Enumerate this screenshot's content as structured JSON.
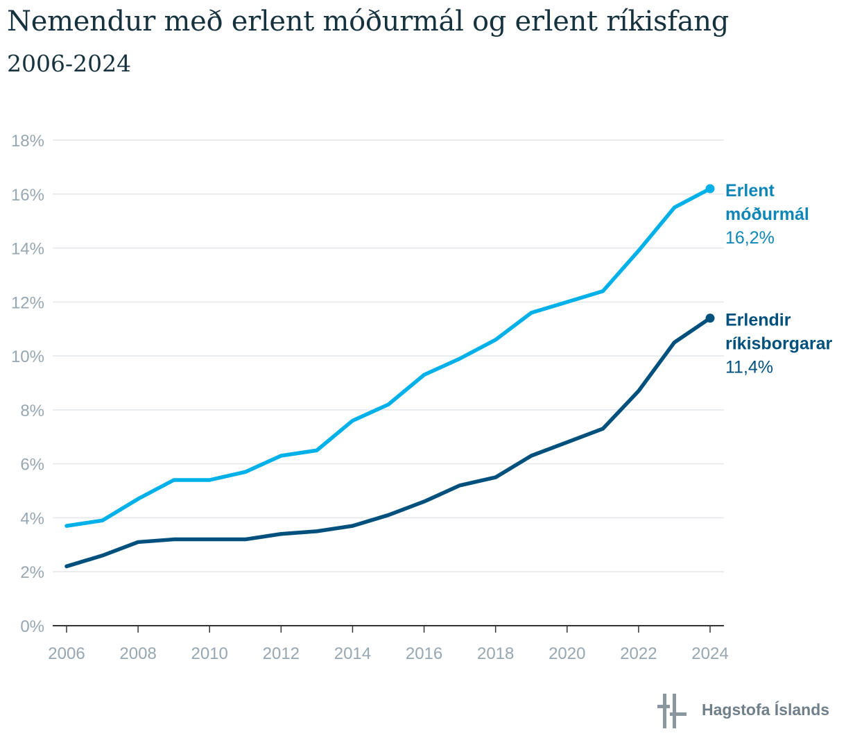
{
  "title": "Nemendur með erlent móðurmál og erlent ríkisfang",
  "subtitle": "2006-2024",
  "brand": {
    "name": "Hagstofa Íslands"
  },
  "colors": {
    "light_series": "#00b0e8",
    "dark_series": "#00507d",
    "grid": "#e2e6ea",
    "axis": "#333333",
    "tick_text": "#97a7b2"
  },
  "chart_data": {
    "type": "line",
    "x": [
      2006,
      2007,
      2008,
      2009,
      2010,
      2011,
      2012,
      2013,
      2014,
      2015,
      2016,
      2017,
      2018,
      2019,
      2020,
      2021,
      2022,
      2023,
      2024
    ],
    "x_tick_labels": [
      "2006",
      "2008",
      "2010",
      "2012",
      "2014",
      "2016",
      "2018",
      "2020",
      "2022",
      "2024"
    ],
    "y_tick_labels": [
      "0%",
      "2%",
      "4%",
      "6%",
      "8%",
      "10%",
      "12%",
      "14%",
      "16%",
      "18%"
    ],
    "ylim": [
      0,
      18
    ],
    "grid": true,
    "series": [
      {
        "name_line1": "Erlent",
        "name_line2": "móðurmál",
        "end_label": "16,2%",
        "color": "#00b0e8",
        "label_name_color": "#0e86b8",
        "values": [
          3.7,
          3.9,
          4.7,
          5.4,
          5.4,
          5.7,
          6.3,
          6.5,
          7.6,
          8.2,
          9.3,
          9.9,
          10.6,
          11.6,
          12.0,
          12.4,
          13.9,
          15.5,
          16.2
        ]
      },
      {
        "name_line1": "Erlendir",
        "name_line2": "ríkisborgarar",
        "end_label": "11,4%",
        "color": "#00507d",
        "label_name_color": "#00507d",
        "values": [
          2.2,
          2.6,
          3.1,
          3.2,
          3.2,
          3.2,
          3.4,
          3.5,
          3.7,
          4.1,
          4.6,
          5.2,
          5.5,
          6.3,
          6.8,
          7.3,
          8.7,
          10.5,
          11.4
        ]
      }
    ]
  }
}
